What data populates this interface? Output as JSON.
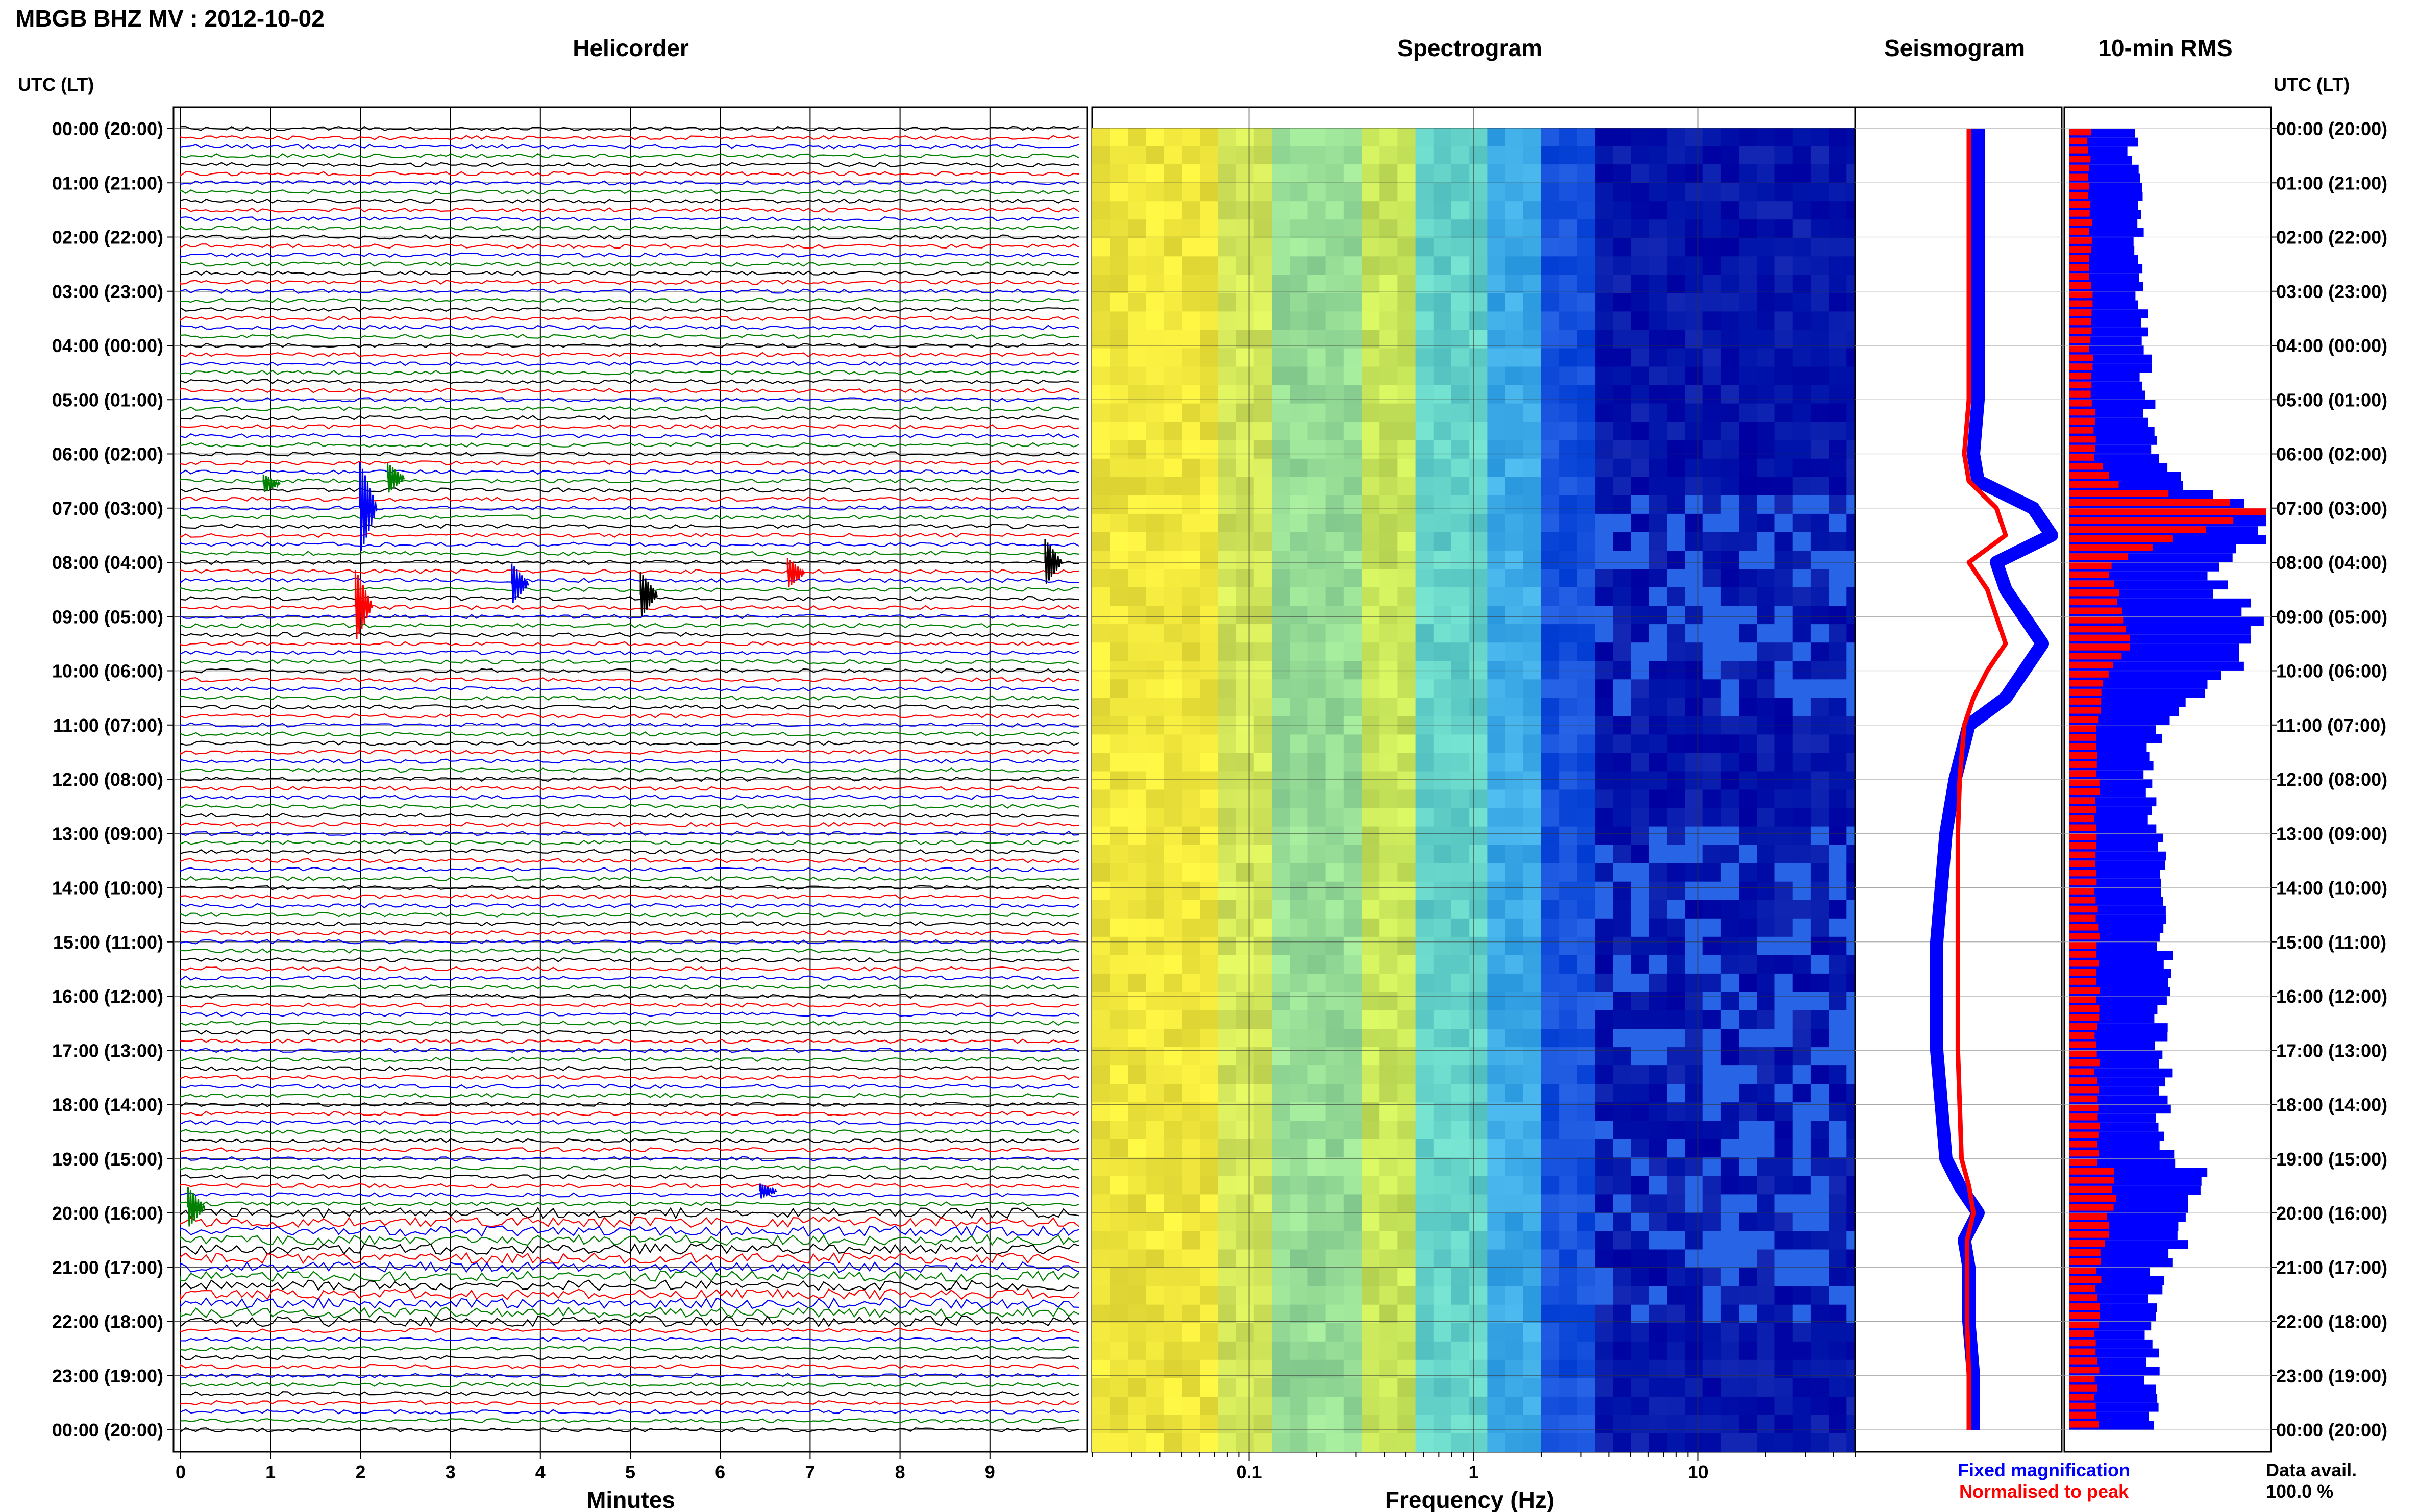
{
  "header": {
    "station_title": "MBGB BHZ MV : 2012-10-02",
    "utc_lt_label": "UTC (LT)"
  },
  "panels": {
    "helicorder": "Helicorder",
    "spectrogram": "Spectrogram",
    "seismogram": "Seismogram",
    "rms": "10-min RMS"
  },
  "axes": {
    "minutes_label": "Minutes",
    "frequency_label": "Frequency (Hz)"
  },
  "legend": {
    "fixed_magnification": "Fixed magnification",
    "normalised_to_peak": "Normalised to peak",
    "fixed_color": "#0000ff",
    "normalised_color": "#ff0000"
  },
  "data_availability": {
    "label": "Data avail.",
    "value": "100.0 %"
  },
  "colors": {
    "trace_cycle": [
      "#000000",
      "#ff0000",
      "#0000ff",
      "#008000"
    ],
    "spectrogram_low": "#ffff33",
    "spectrogram_mid": "#33cccc",
    "spectrogram_high": "#000099",
    "rms_fixed": "#0000ff",
    "rms_normalised": "#ff0000"
  },
  "chart_data": [
    {
      "type": "line",
      "panel": "helicorder",
      "xlabel": "Minutes",
      "xticks": [
        "0",
        "1",
        "2",
        "3",
        "4",
        "5",
        "6",
        "7",
        "8",
        "9"
      ],
      "xlim": [
        0,
        10
      ],
      "row_ticks": [
        "00:00 (20:00)",
        "01:00 (21:00)",
        "02:00 (22:00)",
        "03:00 (23:00)",
        "04:00 (00:00)",
        "05:00 (01:00)",
        "06:00 (02:00)",
        "07:00 (03:00)",
        "08:00 (04:00)",
        "09:00 (05:00)",
        "10:00 (06:00)",
        "11:00 (07:00)",
        "12:00 (08:00)",
        "13:00 (09:00)",
        "14:00 (10:00)",
        "15:00 (11:00)",
        "16:00 (12:00)",
        "17:00 (13:00)",
        "18:00 (14:00)",
        "19:00 (15:00)",
        "20:00 (16:00)",
        "21:00 (17:00)",
        "22:00 (18:00)",
        "23:00 (19:00)",
        "00:00 (20:00)"
      ],
      "traces_per_hour": 6,
      "noisy_hours": [
        20,
        21
      ]
    },
    {
      "type": "heatmap",
      "panel": "spectrogram",
      "xlabel": "Frequency (Hz)",
      "xscale": "log",
      "xlim": [
        0.02,
        50
      ],
      "xticks": [
        "0.1",
        "1",
        "10"
      ]
    },
    {
      "type": "line",
      "panel": "seismogram",
      "x_scale": "relative amplitude",
      "series": [
        {
          "name": "Fixed magnification",
          "hours": [
            0,
            1,
            2,
            3,
            4,
            5,
            6,
            6.5,
            7,
            7.5,
            8,
            8.5,
            9,
            9.5,
            10,
            10.5,
            11,
            12,
            13,
            14,
            15,
            16,
            17,
            18,
            19,
            19.5,
            20,
            20.5,
            21,
            22,
            23,
            24
          ],
          "values": [
            0.1,
            0.1,
            0.1,
            0.1,
            0.1,
            0.1,
            0.05,
            0.1,
            0.7,
            0.9,
            0.3,
            0.4,
            0.6,
            0.8,
            0.6,
            0.4,
            0.0,
            -0.15,
            -0.25,
            -0.3,
            -0.35,
            -0.35,
            -0.35,
            -0.3,
            -0.25,
            -0.1,
            0.1,
            -0.05,
            0.0,
            0.0,
            0.05,
            0.05
          ]
        },
        {
          "name": "Normalised to peak",
          "hours": [
            0,
            1,
            2,
            3,
            4,
            5,
            6,
            6.5,
            7,
            7.5,
            8,
            8.5,
            9,
            9.5,
            10,
            10.5,
            11,
            12,
            13,
            14,
            15,
            16,
            17,
            18,
            19,
            19.5,
            20,
            20.5,
            21,
            22,
            23,
            24
          ],
          "values": [
            0.0,
            0.0,
            0.0,
            0.0,
            0.0,
            0.0,
            -0.05,
            0.0,
            0.3,
            0.4,
            0.0,
            0.2,
            0.3,
            0.4,
            0.2,
            0.05,
            -0.05,
            -0.1,
            -0.12,
            -0.12,
            -0.12,
            -0.12,
            -0.12,
            -0.1,
            -0.08,
            0.0,
            0.05,
            -0.02,
            -0.02,
            -0.02,
            0.0,
            0.0
          ]
        }
      ]
    },
    {
      "type": "bar",
      "panel": "rms",
      "orientation": "horizontal",
      "bin_minutes": 10,
      "series": [
        {
          "name": "Fixed magnification",
          "hours_to_values": "piecewise",
          "hours": [
            0,
            1,
            2,
            3,
            4,
            5,
            6,
            6.5,
            7,
            7.5,
            8,
            8.5,
            9,
            9.5,
            10,
            10.5,
            11,
            12,
            13,
            14,
            15,
            16,
            17,
            18,
            19,
            19.2,
            20,
            20.5,
            21,
            22,
            23,
            24
          ],
          "values": [
            0.32,
            0.34,
            0.35,
            0.36,
            0.38,
            0.4,
            0.45,
            0.55,
            1.0,
            0.95,
            0.7,
            0.8,
            1.0,
            0.9,
            0.85,
            0.55,
            0.45,
            0.4,
            0.45,
            0.48,
            0.48,
            0.48,
            0.48,
            0.48,
            0.5,
            0.7,
            0.55,
            0.58,
            0.45,
            0.42,
            0.42,
            0.45
          ]
        },
        {
          "name": "Normalised to peak",
          "hours": [
            0,
            1,
            2,
            3,
            4,
            5,
            6,
            6.5,
            7,
            7.5,
            8,
            8.5,
            9,
            9.5,
            10,
            10.5,
            11,
            12,
            13,
            14,
            15,
            16,
            17,
            18,
            19,
            19.2,
            20,
            20.5,
            21,
            22,
            23,
            24
          ],
          "values": [
            0.1,
            0.1,
            0.11,
            0.11,
            0.11,
            0.12,
            0.13,
            0.25,
            1.0,
            0.55,
            0.2,
            0.25,
            0.3,
            0.28,
            0.2,
            0.15,
            0.14,
            0.14,
            0.14,
            0.14,
            0.14,
            0.14,
            0.14,
            0.14,
            0.15,
            0.25,
            0.2,
            0.18,
            0.15,
            0.14,
            0.14,
            0.14
          ]
        }
      ]
    }
  ]
}
